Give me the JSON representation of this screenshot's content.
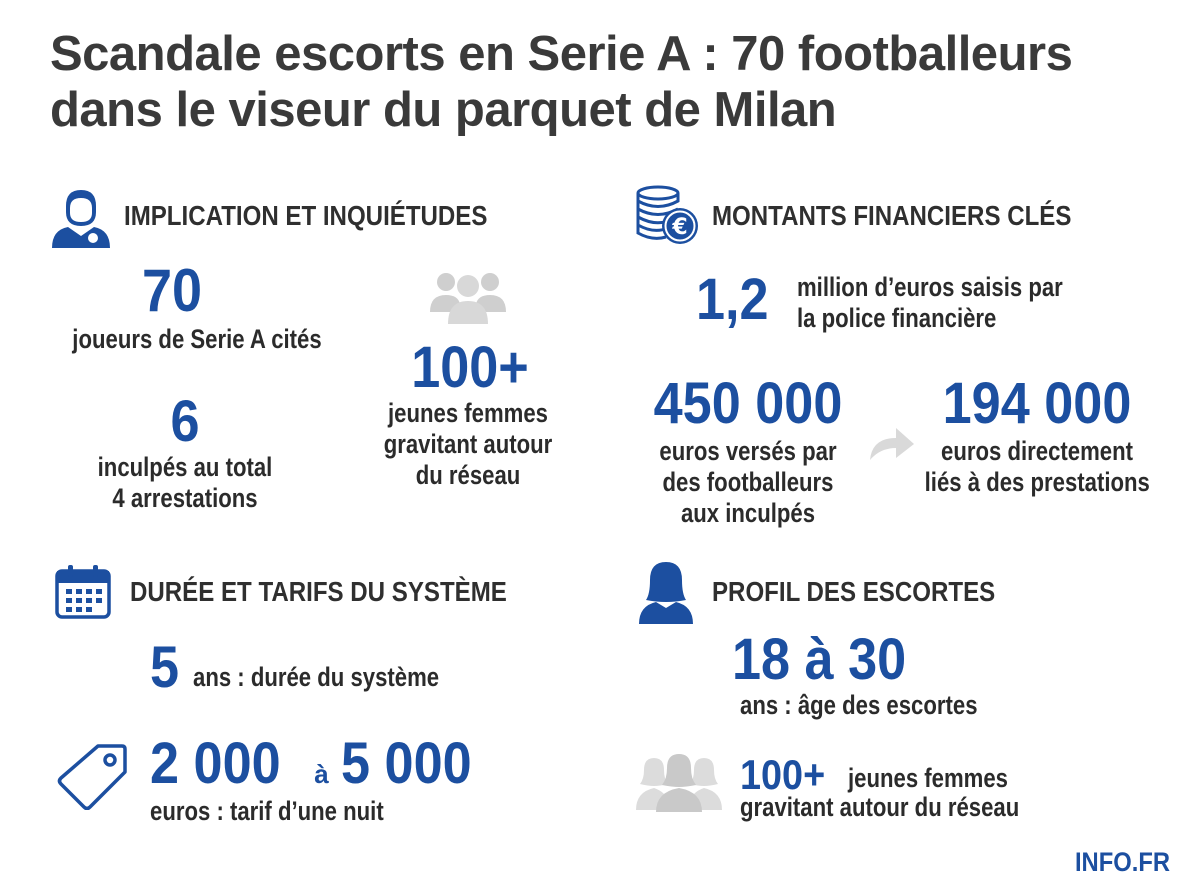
{
  "title": {
    "line1": "Scandale escorts en Serie A : 70 footballeurs",
    "line2": "dans le viseur du parquet de Milan"
  },
  "sections": {
    "implication": {
      "heading": "IMPLICATION ET INQUIÉTUDES",
      "stat1_value": "70",
      "stat1_label": "joueurs de Serie A cités",
      "stat2_value": "6",
      "stat2_label_line1": "inculpés au total",
      "stat2_label_line2": "4 arrestations",
      "stat3_value": "100+",
      "stat3_label_line1": "jeunes femmes",
      "stat3_label_line2": "gravitant autour",
      "stat3_label_line3": "du réseau"
    },
    "montants": {
      "heading": "MONTANTS FINANCIERS CLÉS",
      "stat1_value": "1,2",
      "stat1_label_line1": "million d’euros saisis par",
      "stat1_label_line2": "la police financière",
      "stat2_value": "450 000",
      "stat2_label_line1": "euros versés par",
      "stat2_label_line2": "des footballeurs",
      "stat2_label_line3": "aux inculpés",
      "stat3_value": "194 000",
      "stat3_label_line1": "euros directement",
      "stat3_label_line2": "liés à des prestations"
    },
    "duree": {
      "heading": "DURÉE ET TARIFS DU SYSTÈME",
      "stat1_value": "5",
      "stat1_label": "ans : durée du système",
      "stat2_value_from": "2 000",
      "stat2_connector": "à",
      "stat2_value_to": "5 000",
      "stat2_label": "euros : tarif d’une nuit"
    },
    "profil": {
      "heading": "PROFIL DES ESCORTES",
      "stat1_value": "18 à 30",
      "stat1_label": "ans : âge des escortes",
      "stat2_value": "100+",
      "stat2_label_line1": "jeunes femmes",
      "stat2_label_line2": "gravitant autour du réseau"
    }
  },
  "brand": "INFO.FR",
  "icons": {
    "implication": "footballer-person-icon",
    "group": "group-people-icon",
    "money": "coins-euro-icon",
    "arrow": "arrow-right-icon",
    "calendar": "calendar-icon",
    "tag": "price-tag-icon",
    "woman": "woman-silhouette-icon",
    "women_group": "women-group-icon"
  },
  "colors": {
    "accent": "#1c4fa0",
    "text": "#2b2b2b",
    "muted_icon": "#cfcfcf"
  }
}
